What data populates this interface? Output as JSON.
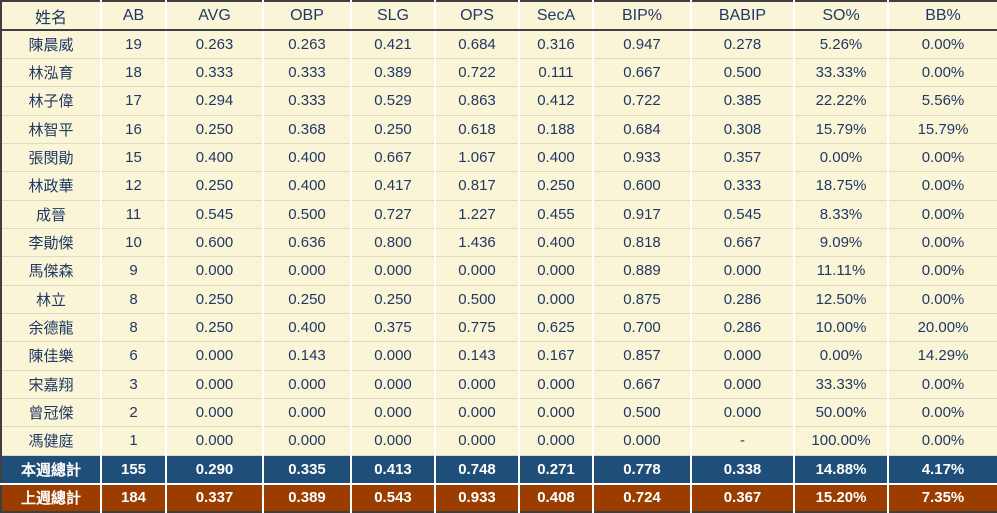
{
  "chart_data": {
    "type": "table",
    "title": "",
    "columns": [
      "姓名",
      "AB",
      "AVG",
      "OBP",
      "SLG",
      "OPS",
      "SecA",
      "BIP%",
      "BABIP",
      "SO%",
      "BB%"
    ],
    "rows": [
      [
        "陳晨威",
        "19",
        "0.263",
        "0.263",
        "0.421",
        "0.684",
        "0.316",
        "0.947",
        "0.278",
        "5.26%",
        "0.00%"
      ],
      [
        "林泓育",
        "18",
        "0.333",
        "0.333",
        "0.389",
        "0.722",
        "0.111",
        "0.667",
        "0.500",
        "33.33%",
        "0.00%"
      ],
      [
        "林子偉",
        "17",
        "0.294",
        "0.333",
        "0.529",
        "0.863",
        "0.412",
        "0.722",
        "0.385",
        "22.22%",
        "5.56%"
      ],
      [
        "林智平",
        "16",
        "0.250",
        "0.368",
        "0.250",
        "0.618",
        "0.188",
        "0.684",
        "0.308",
        "15.79%",
        "15.79%"
      ],
      [
        "張閔勛",
        "15",
        "0.400",
        "0.400",
        "0.667",
        "1.067",
        "0.400",
        "0.933",
        "0.357",
        "0.00%",
        "0.00%"
      ],
      [
        "林政華",
        "12",
        "0.250",
        "0.400",
        "0.417",
        "0.817",
        "0.250",
        "0.600",
        "0.333",
        "18.75%",
        "0.00%"
      ],
      [
        "成晉",
        "11",
        "0.545",
        "0.500",
        "0.727",
        "1.227",
        "0.455",
        "0.917",
        "0.545",
        "8.33%",
        "0.00%"
      ],
      [
        "李勛傑",
        "10",
        "0.600",
        "0.636",
        "0.800",
        "1.436",
        "0.400",
        "0.818",
        "0.667",
        "9.09%",
        "0.00%"
      ],
      [
        "馬傑森",
        "9",
        "0.000",
        "0.000",
        "0.000",
        "0.000",
        "0.000",
        "0.889",
        "0.000",
        "11.11%",
        "0.00%"
      ],
      [
        "林立",
        "8",
        "0.250",
        "0.250",
        "0.250",
        "0.500",
        "0.000",
        "0.875",
        "0.286",
        "12.50%",
        "0.00%"
      ],
      [
        "余德龍",
        "8",
        "0.250",
        "0.400",
        "0.375",
        "0.775",
        "0.625",
        "0.700",
        "0.286",
        "10.00%",
        "20.00%"
      ],
      [
        "陳佳樂",
        "6",
        "0.000",
        "0.143",
        "0.000",
        "0.143",
        "0.167",
        "0.857",
        "0.000",
        "0.00%",
        "14.29%"
      ],
      [
        "宋嘉翔",
        "3",
        "0.000",
        "0.000",
        "0.000",
        "0.000",
        "0.000",
        "0.667",
        "0.000",
        "33.33%",
        "0.00%"
      ],
      [
        "曾冠傑",
        "2",
        "0.000",
        "0.000",
        "0.000",
        "0.000",
        "0.000",
        "0.500",
        "0.000",
        "50.00%",
        "0.00%"
      ],
      [
        "馮健庭",
        "1",
        "0.000",
        "0.000",
        "0.000",
        "0.000",
        "0.000",
        "0.000",
        "-",
        "100.00%",
        "0.00%"
      ]
    ],
    "totals": [
      {
        "label": "本週總計",
        "values": [
          "155",
          "0.290",
          "0.335",
          "0.413",
          "0.748",
          "0.271",
          "0.778",
          "0.338",
          "14.88%",
          "4.17%"
        ]
      },
      {
        "label": "上週總計",
        "values": [
          "184",
          "0.337",
          "0.389",
          "0.543",
          "0.933",
          "0.408",
          "0.724",
          "0.367",
          "15.20%",
          "7.35%"
        ]
      }
    ]
  },
  "colors": {
    "cell_background": "#FBF5D8",
    "text": "#1F3864",
    "this_week_row_bg": "#1F4E79",
    "last_week_row_bg": "#9C3D00",
    "total_text": "#FFFFFF"
  }
}
